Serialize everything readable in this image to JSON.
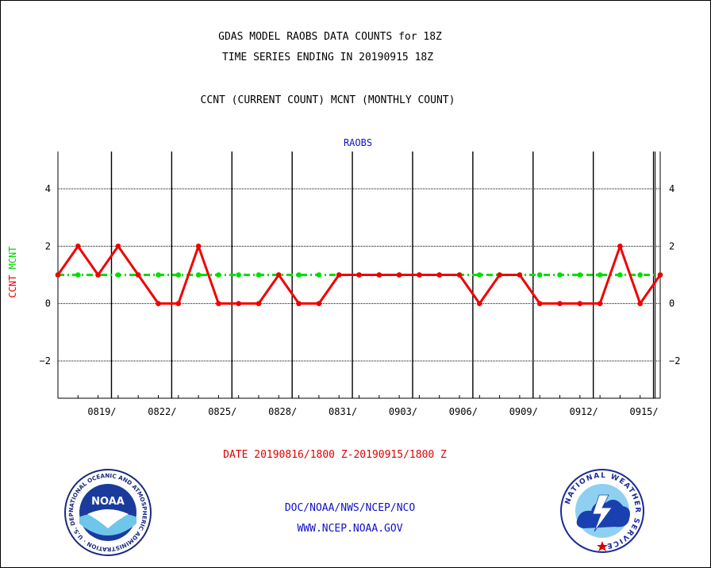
{
  "titles": {
    "line1": "GDAS MODEL RAOBS DATA COUNTS for 18Z",
    "line2": "TIME SERIES ENDING IN 20190915 18Z",
    "line3": "CCNT (CURRENT COUNT) MCNT (MONTHLY COUNT)"
  },
  "plot_label": "RAOBS",
  "yaxis": {
    "ccnt_label": "CCNT",
    "mcnt_label": "MCNT"
  },
  "date_range": "DATE 20190816/1800 Z-20190915/1800 Z",
  "footer": {
    "org": "DOC/NOAA/NWS/NCEP/NCO",
    "url": "WWW.NCEP.NOAA.GOV"
  },
  "logos": {
    "noaa_text": "NOAA",
    "noaa_ring": "NATIONAL OCEANIC AND ATMOSPHERIC ADMINISTRATION · U.S. DEPARTMENT OF COMMERCE ·",
    "nws_ring": "NATIONAL WEATHER SERVICE"
  },
  "colors": {
    "ccnt": "#f00000",
    "mcnt": "#00e000",
    "title": "#000000",
    "plot_label": "#1010c8"
  },
  "chart_data": {
    "type": "line",
    "xlabel": "DATE 20190816/1800 Z-20190915/1800 Z",
    "ylabel": "CCNT  MCNT",
    "ylim": [
      -3.3,
      5.3
    ],
    "yticks": [
      -2,
      0,
      2,
      4
    ],
    "x_tick_labels": [
      "0819/",
      "0822/",
      "0825/",
      "0828/",
      "0831/",
      "0903/",
      "0906/",
      "0909/",
      "0912/",
      "0915/"
    ],
    "x_tick_days": [
      3,
      6,
      9,
      12,
      15,
      18,
      21,
      24,
      27,
      30
    ],
    "x_days": [
      0,
      1,
      2,
      3,
      4,
      5,
      6,
      7,
      8,
      9,
      10,
      11,
      12,
      13,
      14,
      15,
      16,
      17,
      18,
      19,
      20,
      21,
      22,
      23,
      24,
      25,
      26,
      27,
      28,
      29,
      30
    ],
    "series": [
      {
        "name": "CCNT",
        "values": [
          1,
          2,
          1,
          2,
          1,
          0,
          0,
          2,
          0,
          0,
          0,
          1,
          0,
          0,
          1,
          1,
          1,
          1,
          1,
          1,
          1,
          0,
          1,
          1,
          0,
          0,
          0,
          0,
          2,
          0,
          1
        ]
      },
      {
        "name": "MCNT",
        "values": [
          1,
          1,
          1,
          1,
          1,
          1,
          1,
          1,
          1,
          1,
          1,
          1,
          1,
          1,
          1,
          1,
          1,
          1,
          1,
          1,
          1,
          1,
          1,
          1,
          1,
          1,
          1,
          1,
          1,
          1,
          1
        ]
      }
    ],
    "grid": true
  }
}
